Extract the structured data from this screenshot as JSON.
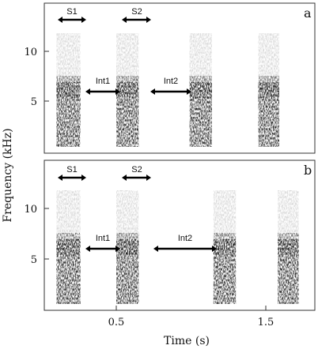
{
  "figure": {
    "y_label": "Frequency (kHz)",
    "x_label": "Time (s)",
    "x_ticks": [
      "0.5",
      "1.5"
    ],
    "y_ticks": [
      "10",
      "5"
    ],
    "panels": [
      {
        "letter": "a",
        "syllable_labels": [
          "S1",
          "S2"
        ],
        "interval_labels": [
          "Int1",
          "Int2"
        ],
        "syllables": [
          {
            "t0": 0.1,
            "t1": 0.26
          },
          {
            "t0": 0.5,
            "t1": 0.65
          },
          {
            "t0": 0.99,
            "t1": 1.14
          },
          {
            "t0": 1.45,
            "t1": 1.59
          }
        ]
      },
      {
        "letter": "b",
        "syllable_labels": [
          "S1",
          "S2"
        ],
        "interval_labels": [
          "Int1",
          "Int2"
        ],
        "syllables": [
          {
            "t0": 0.1,
            "t1": 0.26
          },
          {
            "t0": 0.5,
            "t1": 0.65
          },
          {
            "t0": 1.15,
            "t1": 1.3
          },
          {
            "t0": 1.58,
            "t1": 1.72
          }
        ]
      }
    ]
  }
}
